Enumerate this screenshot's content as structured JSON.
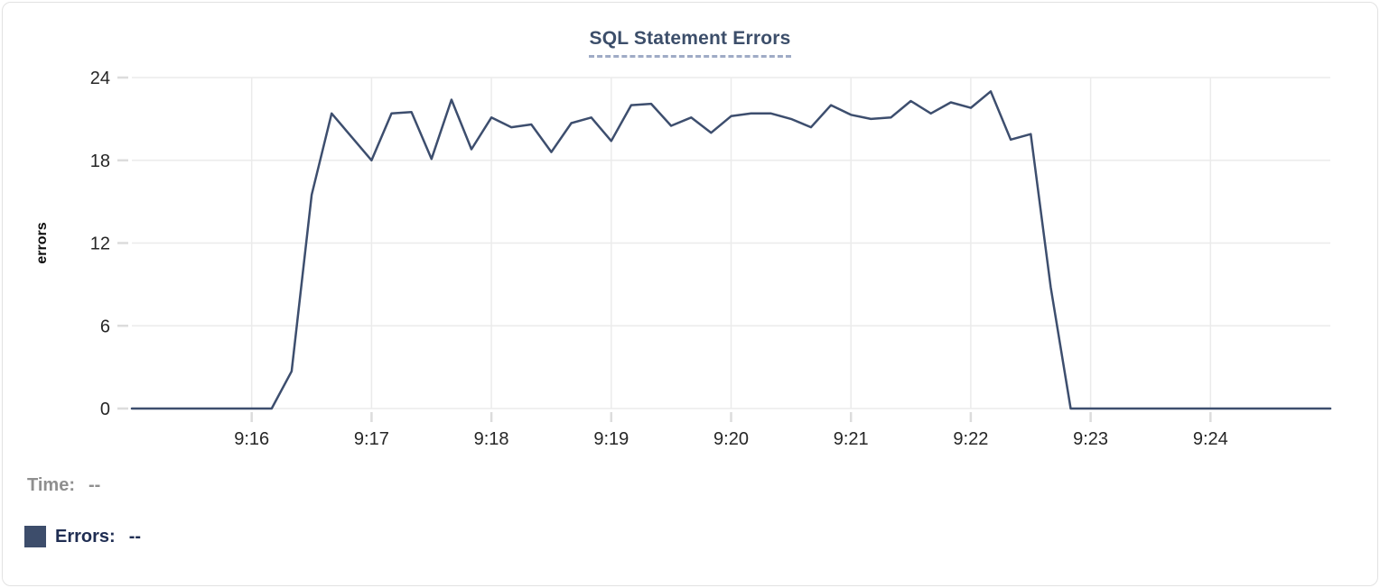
{
  "chart_data": {
    "type": "line",
    "title": "SQL Statement Errors",
    "ylabel": "errors",
    "series_name": "Errors",
    "ylim": [
      0,
      24
    ],
    "yticks": [
      0,
      6,
      12,
      18,
      24
    ],
    "xtick_labels": [
      "9:16",
      "9:17",
      "9:18",
      "9:19",
      "9:20",
      "9:21",
      "9:22",
      "9:23",
      "9:24"
    ],
    "x_interval_seconds": 10,
    "grid": true,
    "legend_position": "bottom-left",
    "x": [
      "9:15:00",
      "9:15:10",
      "9:15:20",
      "9:15:30",
      "9:15:40",
      "9:15:50",
      "9:16:00",
      "9:16:10",
      "9:16:20",
      "9:16:30",
      "9:16:40",
      "9:16:50",
      "9:17:00",
      "9:17:10",
      "9:17:20",
      "9:17:30",
      "9:17:40",
      "9:17:50",
      "9:18:00",
      "9:18:10",
      "9:18:20",
      "9:18:30",
      "9:18:40",
      "9:18:50",
      "9:19:00",
      "9:19:10",
      "9:19:20",
      "9:19:30",
      "9:19:40",
      "9:19:50",
      "9:20:00",
      "9:20:10",
      "9:20:20",
      "9:20:30",
      "9:20:40",
      "9:20:50",
      "9:21:00",
      "9:21:10",
      "9:21:20",
      "9:21:30",
      "9:21:40",
      "9:21:50",
      "9:22:00",
      "9:22:10",
      "9:22:20",
      "9:22:30",
      "9:22:40",
      "9:22:50",
      "9:23:00",
      "9:23:10",
      "9:23:20",
      "9:23:30",
      "9:23:40",
      "9:23:50",
      "9:24:00",
      "9:24:10",
      "9:24:20",
      "9:24:30",
      "9:24:40",
      "9:24:50",
      "9:25:00"
    ],
    "values": [
      0,
      0,
      0,
      0,
      0,
      0,
      0,
      0,
      2.7,
      15.5,
      21.4,
      19.7,
      18,
      21.4,
      21.5,
      18.1,
      22.4,
      18.8,
      21.1,
      20.4,
      20.6,
      18.6,
      20.7,
      21.1,
      19.4,
      22,
      22.1,
      20.5,
      21.1,
      20,
      21.2,
      21.4,
      21.4,
      21,
      20.4,
      22,
      21.3,
      21,
      21.1,
      22.3,
      21.4,
      22.2,
      21.8,
      23,
      19.5,
      19.9,
      8.8,
      0,
      0,
      0,
      0,
      0,
      0,
      0,
      0,
      0,
      0,
      0,
      0,
      0,
      0
    ]
  },
  "legend": {
    "time_label": "Time:",
    "time_value": "--",
    "errors_label": "Errors:",
    "errors_value": "--"
  },
  "colors": {
    "line": "#3d4e6e",
    "series_swatch": "#3d4d6b",
    "title": "#3c4e6a",
    "title_underline": "#9fabc6",
    "grid": "#ebebeb",
    "tick": "#dcdcdc",
    "axis_text": "#262626",
    "time_label": "#8f8f8f",
    "errors_label": "#1f2d52"
  }
}
